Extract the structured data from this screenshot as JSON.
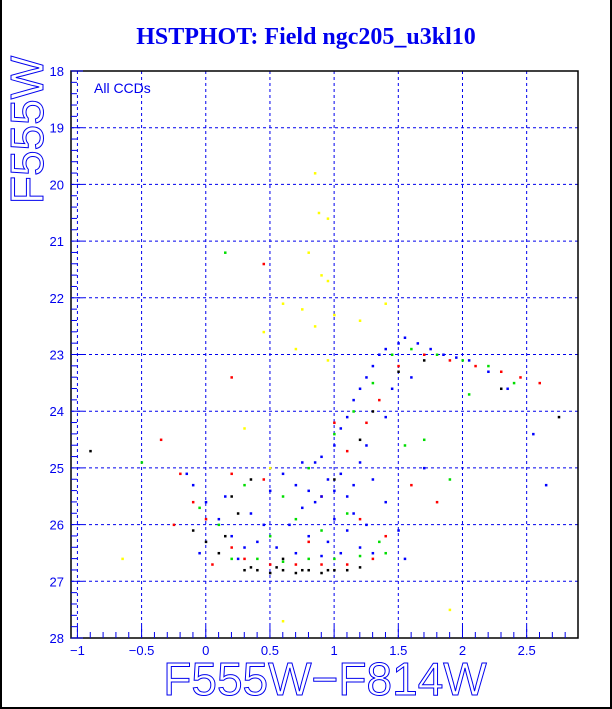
{
  "chart_data": {
    "type": "scatter",
    "title": "HSTPHOT: Field ngc205_u3kl10",
    "annotation": "All CCDs",
    "xlabel": "F555W−F814W",
    "ylabel": "F555W",
    "xlim": [
      -1.05,
      2.9
    ],
    "ylim": [
      28,
      18
    ],
    "y_inverted": true,
    "grid": true,
    "xticks": [
      -1,
      -0.5,
      0,
      0.5,
      1,
      1.5,
      2,
      2.5
    ],
    "xtick_labels": [
      "−1",
      "−0.5",
      "0",
      "0.5",
      "1",
      "1.5",
      "2",
      "2.5"
    ],
    "yticks": [
      18,
      19,
      20,
      21,
      22,
      23,
      24,
      25,
      26,
      27,
      28
    ],
    "ytick_labels": [
      "18",
      "19",
      "20",
      "21",
      "22",
      "23",
      "24",
      "25",
      "26",
      "27",
      "28"
    ],
    "series": [
      {
        "name": "black",
        "color": "#000000",
        "points": [
          [
            0.3,
            26.8
          ],
          [
            0.4,
            26.8
          ],
          [
            0.5,
            26.85
          ],
          [
            0.6,
            26.8
          ],
          [
            0.7,
            26.85
          ],
          [
            0.8,
            26.8
          ],
          [
            0.9,
            26.85
          ],
          [
            1.0,
            26.8
          ],
          [
            1.1,
            26.8
          ],
          [
            0.35,
            26.75
          ],
          [
            0.55,
            26.75
          ],
          [
            0.75,
            26.8
          ],
          [
            0.95,
            26.8
          ],
          [
            1.2,
            26.75
          ],
          [
            0.1,
            26.5
          ],
          [
            0.0,
            26.3
          ],
          [
            -0.1,
            26.1
          ],
          [
            0.2,
            25.5
          ],
          [
            0.35,
            25.2
          ],
          [
            1.0,
            25.2
          ],
          [
            1.2,
            24.5
          ],
          [
            1.3,
            24.0
          ],
          [
            1.5,
            23.3
          ],
          [
            1.7,
            23.1
          ],
          [
            0.6,
            26.6
          ],
          [
            -0.9,
            24.7
          ],
          [
            2.3,
            23.6
          ],
          [
            2.75,
            24.1
          ],
          [
            0.15,
            26.2
          ],
          [
            0.25,
            25.8
          ]
        ]
      },
      {
        "name": "red",
        "color": "#ff0000",
        "points": [
          [
            0.3,
            26.6
          ],
          [
            0.5,
            26.7
          ],
          [
            0.7,
            26.7
          ],
          [
            0.9,
            26.7
          ],
          [
            1.1,
            26.7
          ],
          [
            1.3,
            26.6
          ],
          [
            0.2,
            26.4
          ],
          [
            0.0,
            25.9
          ],
          [
            -0.1,
            25.6
          ],
          [
            -0.2,
            25.1
          ],
          [
            -0.35,
            24.5
          ],
          [
            0.2,
            25.1
          ],
          [
            0.45,
            25.2
          ],
          [
            0.9,
            25.5
          ],
          [
            1.1,
            24.7
          ],
          [
            1.25,
            24.2
          ],
          [
            1.35,
            23.8
          ],
          [
            1.5,
            23.2
          ],
          [
            1.7,
            23.0
          ],
          [
            1.9,
            23.1
          ],
          [
            2.1,
            23.2
          ],
          [
            2.3,
            23.3
          ],
          [
            2.45,
            23.4
          ],
          [
            2.6,
            23.5
          ],
          [
            0.2,
            23.4
          ],
          [
            0.45,
            21.4
          ],
          [
            1.6,
            25.3
          ],
          [
            1.8,
            25.6
          ],
          [
            0.05,
            26.7
          ],
          [
            1.4,
            26.2
          ],
          [
            1.2,
            25.9
          ],
          [
            -0.25,
            26.0
          ],
          [
            0.8,
            26.3
          ],
          [
            1.0,
            24.2
          ]
        ]
      },
      {
        "name": "green",
        "color": "#00dd00",
        "points": [
          [
            0.2,
            26.6
          ],
          [
            0.4,
            26.6
          ],
          [
            0.6,
            26.65
          ],
          [
            0.8,
            26.6
          ],
          [
            1.0,
            26.6
          ],
          [
            1.2,
            26.55
          ],
          [
            1.4,
            26.5
          ],
          [
            0.1,
            26.0
          ],
          [
            -0.05,
            25.7
          ],
          [
            0.3,
            25.3
          ],
          [
            0.6,
            25.5
          ],
          [
            0.8,
            25.0
          ],
          [
            1.0,
            24.4
          ],
          [
            1.15,
            24.0
          ],
          [
            1.3,
            23.5
          ],
          [
            1.45,
            23.0
          ],
          [
            1.6,
            22.9
          ],
          [
            1.8,
            23.0
          ],
          [
            2.0,
            23.1
          ],
          [
            2.2,
            23.2
          ],
          [
            2.4,
            23.5
          ],
          [
            1.7,
            24.5
          ],
          [
            1.9,
            25.2
          ],
          [
            0.15,
            21.2
          ],
          [
            -0.5,
            24.9
          ],
          [
            1.1,
            25.8
          ],
          [
            0.9,
            26.1
          ],
          [
            1.35,
            26.3
          ],
          [
            0.5,
            26.2
          ],
          [
            1.55,
            24.6
          ],
          [
            2.05,
            23.7
          ],
          [
            0.7,
            25.9
          ]
        ]
      },
      {
        "name": "blue",
        "color": "#0000ff",
        "points": [
          [
            0.7,
            25.3
          ],
          [
            0.8,
            25.4
          ],
          [
            0.9,
            25.5
          ],
          [
            1.0,
            25.4
          ],
          [
            1.1,
            25.5
          ],
          [
            0.85,
            25.6
          ],
          [
            0.95,
            25.2
          ],
          [
            1.05,
            25.1
          ],
          [
            0.75,
            25.7
          ],
          [
            1.15,
            25.8
          ],
          [
            0.65,
            26.0
          ],
          [
            0.8,
            26.2
          ],
          [
            0.95,
            26.3
          ],
          [
            1.1,
            26.1
          ],
          [
            1.25,
            26.0
          ],
          [
            0.55,
            26.4
          ],
          [
            0.7,
            26.5
          ],
          [
            0.9,
            26.55
          ],
          [
            1.05,
            26.5
          ],
          [
            1.2,
            26.4
          ],
          [
            0.4,
            26.3
          ],
          [
            0.3,
            26.4
          ],
          [
            0.2,
            26.2
          ],
          [
            0.1,
            25.9
          ],
          [
            0.0,
            25.6
          ],
          [
            -0.1,
            25.3
          ],
          [
            -0.15,
            25.1
          ],
          [
            0.15,
            25.5
          ],
          [
            0.35,
            25.8
          ],
          [
            0.45,
            26.0
          ],
          [
            0.9,
            24.8
          ],
          [
            1.0,
            24.6
          ],
          [
            1.05,
            24.3
          ],
          [
            1.1,
            24.1
          ],
          [
            1.15,
            23.8
          ],
          [
            1.2,
            23.6
          ],
          [
            1.25,
            23.4
          ],
          [
            1.3,
            23.2
          ],
          [
            1.35,
            23.0
          ],
          [
            1.4,
            22.9
          ],
          [
            1.5,
            22.8
          ],
          [
            1.55,
            22.7
          ],
          [
            1.65,
            22.8
          ],
          [
            1.75,
            22.9
          ],
          [
            1.85,
            23.0
          ],
          [
            1.95,
            23.05
          ],
          [
            2.05,
            23.1
          ],
          [
            2.2,
            23.3
          ],
          [
            2.35,
            23.6
          ],
          [
            2.55,
            24.4
          ],
          [
            2.65,
            25.3
          ],
          [
            1.2,
            24.9
          ],
          [
            1.3,
            25.2
          ],
          [
            1.4,
            25.6
          ],
          [
            1.5,
            26.1
          ],
          [
            1.55,
            26.6
          ],
          [
            1.0,
            25.9
          ],
          [
            0.85,
            24.9
          ],
          [
            1.25,
            24.6
          ],
          [
            1.4,
            24.1
          ],
          [
            0.6,
            25.1
          ],
          [
            0.5,
            25.4
          ],
          [
            1.3,
            26.5
          ],
          [
            1.15,
            25.3
          ],
          [
            0.75,
            24.9
          ],
          [
            1.6,
            23.4
          ],
          [
            1.45,
            23.6
          ],
          [
            -0.05,
            26.5
          ],
          [
            0.25,
            26.6
          ],
          [
            1.7,
            25.0
          ]
        ]
      },
      {
        "name": "yellow",
        "color": "#ffff00",
        "points": [
          [
            0.85,
            19.8
          ],
          [
            0.88,
            20.5
          ],
          [
            0.95,
            20.6
          ],
          [
            0.9,
            21.6
          ],
          [
            0.95,
            21.7
          ],
          [
            0.8,
            21.2
          ],
          [
            0.75,
            22.2
          ],
          [
            0.85,
            22.5
          ],
          [
            0.6,
            22.1
          ],
          [
            0.7,
            22.9
          ],
          [
            0.95,
            23.1
          ],
          [
            0.45,
            22.6
          ],
          [
            1.2,
            22.4
          ],
          [
            1.0,
            22.3
          ],
          [
            0.5,
            25.0
          ],
          [
            -0.65,
            26.6
          ],
          [
            0.6,
            27.7
          ],
          [
            1.9,
            27.5
          ],
          [
            0.3,
            24.3
          ],
          [
            1.4,
            22.1
          ]
        ]
      }
    ]
  }
}
